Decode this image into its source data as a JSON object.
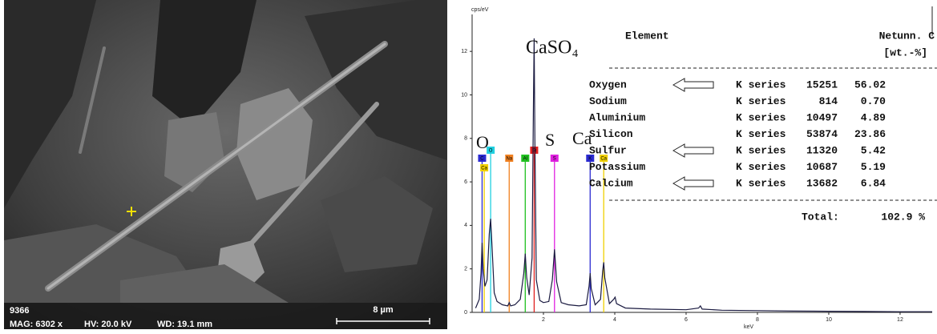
{
  "sem_image": {
    "id": "9366",
    "magnification": "MAG: 6302 x",
    "voltage": "HV: 20.0 kV",
    "working_distance": "WD: 19.1 mm",
    "scale_bar": "8 µm"
  },
  "chart_data": {
    "type": "line",
    "y_label": "cps/eV",
    "x_label": "keV",
    "color": "#1a1a40",
    "x": [
      0.1,
      0.2,
      0.25,
      0.28,
      0.31,
      0.36,
      0.42,
      0.48,
      0.52,
      0.56,
      0.62,
      0.7,
      0.85,
      1.0,
      1.04,
      1.08,
      1.2,
      1.35,
      1.45,
      1.49,
      1.53,
      1.6,
      1.68,
      1.72,
      1.74,
      1.76,
      1.8,
      1.9,
      2.0,
      2.15,
      2.25,
      2.31,
      2.37,
      2.5,
      2.7,
      3.0,
      3.2,
      3.28,
      3.31,
      3.34,
      3.45,
      3.6,
      3.66,
      3.69,
      3.72,
      3.85,
      3.97,
      4.01,
      4.05,
      4.3,
      5.0,
      6.0,
      6.35,
      6.4,
      6.45,
      7.0,
      8.0,
      9.0,
      10.0,
      11.0,
      12.0,
      12.9
    ],
    "values": [
      0.2,
      0.6,
      1.8,
      3.2,
      2.0,
      1.2,
      1.5,
      3.6,
      4.3,
      3.0,
      0.9,
      0.5,
      0.35,
      0.3,
      0.45,
      0.3,
      0.35,
      0.6,
      1.8,
      2.7,
      1.6,
      0.8,
      2.5,
      9.5,
      12.6,
      8.0,
      1.5,
      0.55,
      0.45,
      0.5,
      1.5,
      2.9,
      1.4,
      0.45,
      0.35,
      0.3,
      0.35,
      1.2,
      1.8,
      1.1,
      0.35,
      0.6,
      1.9,
      2.3,
      1.6,
      0.4,
      0.6,
      0.7,
      0.4,
      0.2,
      0.15,
      0.12,
      0.2,
      0.3,
      0.15,
      0.1,
      0.08,
      0.06,
      0.05,
      0.04,
      0.03,
      0.03
    ],
    "xlim": [
      0,
      12.9
    ],
    "xticks": [
      2,
      4,
      6,
      8,
      10,
      12
    ],
    "ylim": [
      0,
      13.7
    ],
    "yticks": [
      0,
      2,
      4,
      6,
      8,
      10,
      12
    ],
    "markers": [
      {
        "label": "C",
        "x": 0.28,
        "color": "#2a2ad0"
      },
      {
        "label": "Ca",
        "x": 0.34,
        "color": "#f0d000"
      },
      {
        "label": "O",
        "x": 0.52,
        "color": "#20d0e0"
      },
      {
        "label": "Na",
        "x": 1.04,
        "color": "#f08020"
      },
      {
        "label": "Al",
        "x": 1.49,
        "color": "#20c020"
      },
      {
        "label": "Si",
        "x": 1.74,
        "color": "#e02020"
      },
      {
        "label": "S",
        "x": 2.31,
        "color": "#e020e0"
      },
      {
        "label": "K",
        "x": 3.31,
        "color": "#2a2ad0"
      },
      {
        "label": "Ca",
        "x": 3.69,
        "color": "#f0d000"
      }
    ],
    "annotations": [
      "CaSO₄",
      "O",
      "S",
      "Ca"
    ]
  },
  "table": {
    "headers": [
      "Element",
      "Net",
      "unn. C",
      "[wt.-%]"
    ],
    "rows": [
      {
        "element": "Oxygen",
        "series": "K series",
        "net": "15251",
        "wt": "56.02",
        "arrow": true
      },
      {
        "element": "Sodium",
        "series": "K series",
        "net": "814",
        "wt": "0.70",
        "arrow": false
      },
      {
        "element": "Aluminium",
        "series": "K series",
        "net": "10497",
        "wt": "4.89",
        "arrow": false
      },
      {
        "element": "Silicon",
        "series": "K series",
        "net": "53874",
        "wt": "23.86",
        "arrow": false
      },
      {
        "element": "Sulfur",
        "series": "K series",
        "net": "11320",
        "wt": "5.42",
        "arrow": true
      },
      {
        "element": "Potassium",
        "series": "K series",
        "net": "10687",
        "wt": "5.19",
        "arrow": false
      },
      {
        "element": "Calcium",
        "series": "K series",
        "net": "13682",
        "wt": "6.84",
        "arrow": true
      }
    ],
    "total_label": "Total:",
    "total_value": "102.9 %"
  }
}
